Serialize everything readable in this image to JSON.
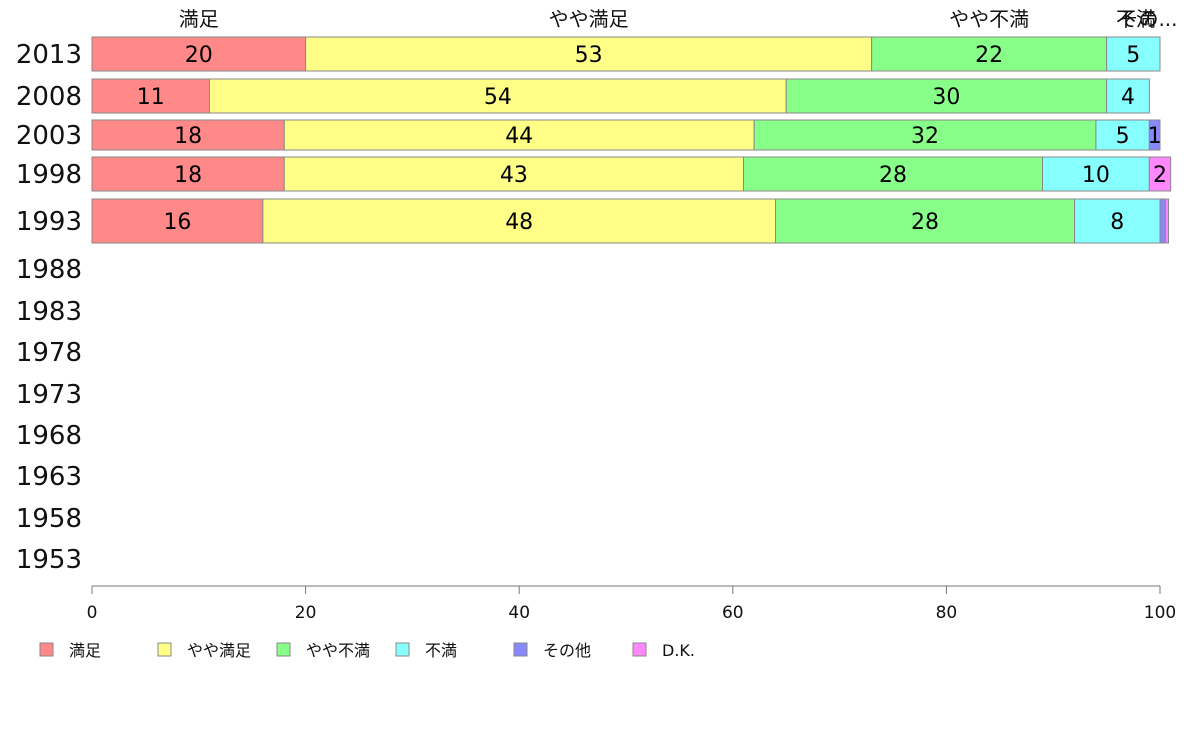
{
  "chart_data": {
    "type": "bar",
    "orientation": "horizontal",
    "stacked": true,
    "categories": [
      "2013",
      "2008",
      "2003",
      "1998",
      "1993",
      "1988",
      "1983",
      "1978",
      "1973",
      "1968",
      "1963",
      "1958",
      "1953"
    ],
    "series": [
      {
        "name": "満足",
        "color": "#ff8888",
        "values": [
          20,
          11,
          18,
          18,
          16,
          null,
          null,
          null,
          null,
          null,
          null,
          null,
          null
        ]
      },
      {
        "name": "やや満足",
        "color": "#ffff88",
        "values": [
          53,
          54,
          44,
          43,
          48,
          null,
          null,
          null,
          null,
          null,
          null,
          null,
          null
        ]
      },
      {
        "name": "やや不満",
        "color": "#88ff88",
        "values": [
          22,
          30,
          32,
          28,
          28,
          null,
          null,
          null,
          null,
          null,
          null,
          null,
          null
        ]
      },
      {
        "name": "不満",
        "color": "#88ffff",
        "values": [
          5,
          4,
          5,
          10,
          8,
          null,
          null,
          null,
          null,
          null,
          null,
          null,
          null
        ]
      },
      {
        "name": "その他",
        "color": "#8888ff",
        "values": [
          0,
          0,
          1,
          0,
          0.5,
          null,
          null,
          null,
          null,
          null,
          null,
          null,
          null
        ]
      },
      {
        "name": "D.K.",
        "color": "#ff88ff",
        "values": [
          0,
          0,
          0,
          2,
          0.3,
          null,
          null,
          null,
          null,
          null,
          null,
          null,
          null
        ]
      }
    ],
    "segment_labels": [
      [
        "20",
        "53",
        "22",
        "5",
        "",
        ""
      ],
      [
        "11",
        "54",
        "30",
        "4",
        "",
        ""
      ],
      [
        "18",
        "44",
        "32",
        "5",
        "1",
        ""
      ],
      [
        "18",
        "43",
        "28",
        "10",
        "",
        "2"
      ],
      [
        "16",
        "48",
        "28",
        "8",
        "",
        ""
      ]
    ],
    "top_labels": [
      "満足",
      "やや満足",
      "やや不満",
      "不満",
      "その..."
    ],
    "x_ticks": [
      "0",
      "20",
      "40",
      "60",
      "80",
      "100"
    ],
    "xlim": [
      0,
      100
    ],
    "legend_position": "bottom-left",
    "grid": false
  }
}
